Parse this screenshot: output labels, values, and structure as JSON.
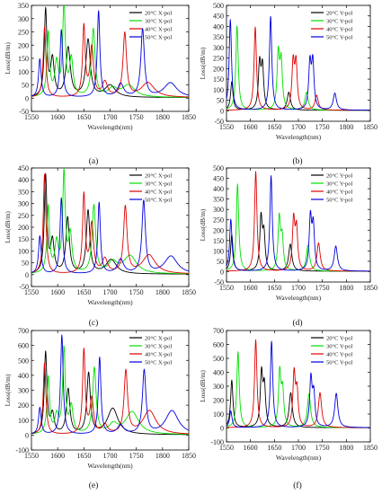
{
  "chart_data": [
    {
      "label": "(a)",
      "type": "line",
      "xlabel": "Wavelength(nm)",
      "ylabel": "Loss(dB/m)",
      "xlim": [
        1550,
        1850
      ],
      "ylim": [
        -50,
        350
      ],
      "xticks": [
        1550,
        1600,
        1650,
        1700,
        1750,
        1800,
        1850
      ],
      "yticks": [
        -50,
        0,
        50,
        100,
        150,
        200,
        250,
        300,
        350
      ],
      "legend_position": "top-right",
      "series": [
        {
          "name": "20°C X-pol",
          "color": "#000000",
          "baseline": 2,
          "peaks": [
            [
              1577,
              325,
              3
            ],
            [
              1590,
              140,
              4
            ],
            [
              1620,
              185,
              5
            ],
            [
              1658,
              215,
              5
            ],
            [
              1700,
              45,
              12
            ]
          ]
        },
        {
          "name": "30°C X-pol",
          "color": "#00e000",
          "baseline": 2,
          "peaks": [
            [
              1582,
              240,
              3
            ],
            [
              1598,
              125,
              4
            ],
            [
              1612,
              345,
              3
            ],
            [
              1626,
              140,
              4
            ],
            [
              1668,
              255,
              4
            ],
            [
              1705,
              30,
              10
            ],
            [
              1735,
              45,
              15
            ]
          ]
        },
        {
          "name": "40°C X-pol",
          "color": "#e00000",
          "baseline": 2,
          "peaks": [
            [
              1575,
              265,
              3
            ],
            [
              1650,
              265,
              3
            ],
            [
              1665,
              185,
              4
            ],
            [
              1690,
              55,
              6
            ],
            [
              1728,
              240,
              4
            ],
            [
              1772,
              55,
              15
            ]
          ]
        },
        {
          "name": "50°C X-pol",
          "color": "#0000dd",
          "baseline": 2,
          "peaks": [
            [
              1566,
              145,
              3
            ],
            [
              1607,
              255,
              3
            ],
            [
              1678,
              325,
              3
            ],
            [
              1720,
              50,
              7
            ],
            [
              1762,
              255,
              4
            ],
            [
              1815,
              55,
              15
            ]
          ]
        }
      ]
    },
    {
      "label": "(b)",
      "type": "line",
      "xlabel": "Wavelength(nm)",
      "ylabel": "Loss(dB/m)",
      "xlim": [
        1550,
        1850
      ],
      "ylim": [
        -50,
        500
      ],
      "xticks": [
        1550,
        1600,
        1650,
        1700,
        1750,
        1800,
        1850
      ],
      "yticks": [
        -50,
        0,
        50,
        100,
        150,
        200,
        250,
        300,
        350,
        400,
        450,
        500
      ],
      "legend_position": "top-right",
      "series": [
        {
          "name": "20°C Y-pol",
          "color": "#000000",
          "baseline": 2,
          "peaks": [
            [
              1561,
              135,
              3
            ],
            [
              1619,
              215,
              3
            ],
            [
              1625,
              200,
              3
            ],
            [
              1680,
              85,
              4
            ]
          ]
        },
        {
          "name": "30°C Y-pol",
          "color": "#00e000",
          "baseline": 2,
          "peaks": [
            [
              1572,
              400,
              3
            ],
            [
              1658,
              260,
              3
            ],
            [
              1664,
              220,
              3
            ],
            [
              1717,
              85,
              4
            ]
          ]
        },
        {
          "name": "40°C Y-pol",
          "color": "#e00000",
          "baseline": 2,
          "peaks": [
            [
              1610,
              395,
              3
            ],
            [
              1689,
              220,
              3
            ],
            [
              1695,
              215,
              3
            ],
            [
              1738,
              70,
              4
            ]
          ]
        },
        {
          "name": "50°C Y-pol",
          "color": "#0000dd",
          "baseline": 2,
          "peaks": [
            [
              1558,
              430,
              3
            ],
            [
              1642,
              445,
              3
            ],
            [
              1724,
              215,
              3
            ],
            [
              1730,
              220,
              3
            ],
            [
              1776,
              80,
              4
            ]
          ]
        }
      ]
    },
    {
      "label": "(c)",
      "type": "line",
      "xlabel": "Wavelength(nm)",
      "ylabel": "Loss(dB/m)",
      "xlim": [
        1550,
        1850
      ],
      "ylim": [
        -50,
        450
      ],
      "xticks": [
        1550,
        1600,
        1650,
        1700,
        1750,
        1800,
        1850
      ],
      "yticks": [
        -50,
        0,
        50,
        100,
        150,
        200,
        250,
        300,
        350,
        400,
        450
      ],
      "legend_position": "top-right",
      "series": [
        {
          "name": "20°C X-pol",
          "color": "#000000",
          "baseline": 2,
          "peaks": [
            [
              1577,
              410,
              3
            ],
            [
              1590,
              135,
              4
            ],
            [
              1619,
              235,
              4
            ],
            [
              1658,
              265,
              4
            ],
            [
              1702,
              60,
              12
            ]
          ]
        },
        {
          "name": "30°C X-pol",
          "color": "#00e000",
          "baseline": 2,
          "peaks": [
            [
              1582,
              280,
              3
            ],
            [
              1598,
              125,
              4
            ],
            [
              1612,
              415,
              3
            ],
            [
              1624,
              160,
              4
            ],
            [
              1669,
              285,
              4
            ],
            [
              1705,
              45,
              10
            ],
            [
              1738,
              75,
              15
            ]
          ]
        },
        {
          "name": "40°C X-pol",
          "color": "#e00000",
          "baseline": 2,
          "peaks": [
            [
              1575,
              420,
              3
            ],
            [
              1650,
              330,
              3
            ],
            [
              1665,
              205,
              4
            ],
            [
              1690,
              60,
              6
            ],
            [
              1729,
              280,
              4
            ],
            [
              1774,
              80,
              15
            ]
          ]
        },
        {
          "name": "50°C X-pol",
          "color": "#0000dd",
          "baseline": 2,
          "peaks": [
            [
              1566,
              160,
              3
            ],
            [
              1607,
              320,
              3
            ],
            [
              1679,
              300,
              3
            ],
            [
              1720,
              60,
              7
            ],
            [
              1764,
              305,
              4
            ],
            [
              1816,
              75,
              15
            ]
          ]
        }
      ]
    },
    {
      "label": "(d)",
      "type": "line",
      "xlabel": "Wavelength(nm)",
      "ylabel": "Loss(dB/m)",
      "xlim": [
        1550,
        1850
      ],
      "ylim": [
        -50,
        500
      ],
      "xticks": [
        1550,
        1600,
        1650,
        1700,
        1750,
        1800,
        1850
      ],
      "yticks": [
        -50,
        0,
        50,
        100,
        150,
        200,
        250,
        300,
        350,
        400,
        450,
        500
      ],
      "legend_position": "top-right",
      "series": [
        {
          "name": "20°C Y-pol",
          "color": "#000000",
          "baseline": 2,
          "peaks": [
            [
              1561,
              175,
              3
            ],
            [
              1622,
              250,
              3
            ],
            [
              1628,
              170,
              3
            ],
            [
              1683,
              130,
              4
            ]
          ]
        },
        {
          "name": "30°C Y-pol",
          "color": "#00e000",
          "baseline": 2,
          "peaks": [
            [
              1573,
              420,
              3
            ],
            [
              1660,
              250,
              3
            ],
            [
              1666,
              150,
              3
            ],
            [
              1720,
              125,
              4
            ]
          ]
        },
        {
          "name": "40°C Y-pol",
          "color": "#e00000",
          "baseline": 2,
          "peaks": [
            [
              1611,
              480,
              3
            ],
            [
              1690,
              240,
              3
            ],
            [
              1696,
              195,
              3
            ],
            [
              1742,
              135,
              4
            ]
          ]
        },
        {
          "name": "50°C Y-pol",
          "color": "#0000dd",
          "baseline": 2,
          "peaks": [
            [
              1559,
              250,
              3
            ],
            [
              1643,
              460,
              3
            ],
            [
              1725,
              250,
              3
            ],
            [
              1731,
              210,
              3
            ],
            [
              1778,
              120,
              4
            ]
          ]
        }
      ]
    },
    {
      "label": "(e)",
      "type": "line",
      "xlabel": "Wavelength(nm)",
      "ylabel": "Loss(dB/m)",
      "xlim": [
        1550,
        1850
      ],
      "ylim": [
        -100,
        700
      ],
      "xticks": [
        1550,
        1600,
        1650,
        1700,
        1750,
        1800,
        1850
      ],
      "yticks": [
        -100,
        0,
        100,
        200,
        300,
        400,
        500,
        600,
        700
      ],
      "legend_position": "top-right",
      "series": [
        {
          "name": "20°C X-pol",
          "color": "#000000",
          "baseline": 2,
          "peaks": [
            [
              1577,
              545,
              3
            ],
            [
              1590,
              130,
              4
            ],
            [
              1620,
              300,
              4
            ],
            [
              1659,
              405,
              4
            ],
            [
              1705,
              175,
              12
            ]
          ]
        },
        {
          "name": "30°C X-pol",
          "color": "#00e000",
          "baseline": 2,
          "peaks": [
            [
              1582,
              380,
              3
            ],
            [
              1598,
              120,
              4
            ],
            [
              1612,
              565,
              3
            ],
            [
              1626,
              180,
              4
            ],
            [
              1670,
              440,
              4
            ],
            [
              1706,
              60,
              10
            ],
            [
              1742,
              150,
              15
            ]
          ]
        },
        {
          "name": "40°C X-pol",
          "color": "#e00000",
          "baseline": 2,
          "peaks": [
            [
              1575,
              480,
              3
            ],
            [
              1650,
              560,
              3
            ],
            [
              1665,
              230,
              4
            ],
            [
              1690,
              60,
              6
            ],
            [
              1730,
              420,
              4
            ],
            [
              1775,
              160,
              15
            ]
          ]
        },
        {
          "name": "50°C X-pol",
          "color": "#0000dd",
          "baseline": 2,
          "peaks": [
            [
              1566,
              180,
              3
            ],
            [
              1608,
              665,
              3
            ],
            [
              1680,
              515,
              3
            ],
            [
              1720,
              60,
              7
            ],
            [
              1765,
              425,
              4
            ],
            [
              1818,
              160,
              15
            ]
          ]
        }
      ]
    },
    {
      "label": "(f)",
      "type": "line",
      "xlabel": "Wavelength(nm)",
      "ylabel": "Loss(dB/m)",
      "xlim": [
        1550,
        1850
      ],
      "ylim": [
        -100,
        700
      ],
      "xticks": [
        1550,
        1600,
        1650,
        1700,
        1750,
        1800,
        1850
      ],
      "yticks": [
        -100,
        0,
        100,
        200,
        300,
        400,
        500,
        600,
        700
      ],
      "legend_position": "top-right",
      "series": [
        {
          "name": "20°C Y-pol",
          "color": "#000000",
          "baseline": 2,
          "peaks": [
            [
              1561,
              340,
              3
            ],
            [
              1623,
              380,
              3
            ],
            [
              1629,
              280,
              3
            ],
            [
              1684,
              250,
              4
            ]
          ]
        },
        {
          "name": "30°C Y-pol",
          "color": "#00e000",
          "baseline": 2,
          "peaks": [
            [
              1574,
              545,
              3
            ],
            [
              1661,
              390,
              3
            ],
            [
              1667,
              250,
              3
            ],
            [
              1722,
              240,
              4
            ]
          ]
        },
        {
          "name": "40°C Y-pol",
          "color": "#e00000",
          "baseline": 2,
          "peaks": [
            [
              1611,
              630,
              3
            ],
            [
              1691,
              380,
              3
            ],
            [
              1697,
              250,
              3
            ],
            [
              1745,
              250,
              4
            ]
          ]
        },
        {
          "name": "50°C Y-pol",
          "color": "#0000dd",
          "baseline": 2,
          "peaks": [
            [
              1559,
              120,
              3
            ],
            [
              1644,
              620,
              3
            ],
            [
              1726,
              345,
              3
            ],
            [
              1732,
              230,
              3
            ],
            [
              1779,
              245,
              4
            ]
          ]
        }
      ]
    }
  ]
}
